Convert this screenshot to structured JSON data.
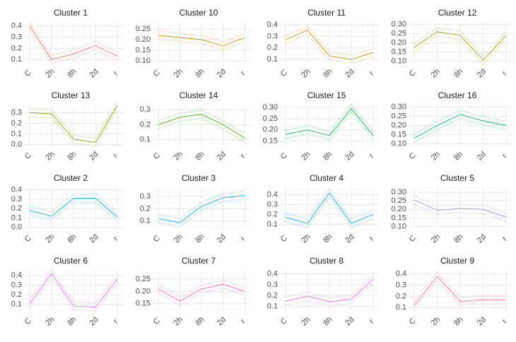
{
  "chart_data": [
    {
      "type": "line",
      "title": "Cluster 1",
      "x": [
        "C",
        "2h",
        "8h",
        "2d",
        "r"
      ],
      "values": [
        0.4,
        0.1,
        0.15,
        0.225,
        0.13
      ],
      "yticks": [
        0.1,
        0.2,
        0.3,
        0.4
      ],
      "ylim": [
        0.07,
        0.43
      ],
      "color": "#F8766D"
    },
    {
      "type": "line",
      "title": "Cluster 10",
      "x": [
        "C",
        "2h",
        "8h",
        "2d",
        "r"
      ],
      "values": [
        0.22,
        0.21,
        0.2,
        0.17,
        0.21
      ],
      "yticks": [
        0.1,
        0.15,
        0.2,
        0.25
      ],
      "ylim": [
        0.09,
        0.28
      ],
      "color": "#D89000"
    },
    {
      "type": "line",
      "title": "Cluster 11",
      "x": [
        "C",
        "2h",
        "8h",
        "2d",
        "r"
      ],
      "values": [
        0.27,
        0.355,
        0.13,
        0.1,
        0.16
      ],
      "yticks": [
        0.1,
        0.2,
        0.3,
        0.4
      ],
      "ylim": [
        0.07,
        0.42
      ],
      "color": "#C09B00"
    },
    {
      "type": "line",
      "title": "Cluster 12",
      "x": [
        "C",
        "2h",
        "8h",
        "2d",
        "r"
      ],
      "values": [
        0.175,
        0.26,
        0.24,
        0.105,
        0.24
      ],
      "yticks": [
        0.1,
        0.15,
        0.2,
        0.25,
        0.3
      ],
      "ylim": [
        0.09,
        0.31
      ],
      "color": "#A3A500"
    },
    {
      "type": "line",
      "title": "Cluster 13",
      "x": [
        "C",
        "2h",
        "8h",
        "2d",
        "r"
      ],
      "values": [
        0.3,
        0.29,
        0.05,
        0.02,
        0.37
      ],
      "yticks": [
        0.0,
        0.1,
        0.2,
        0.3
      ],
      "ylim": [
        -0.01,
        0.37
      ],
      "color": "#7CAE00"
    },
    {
      "type": "line",
      "title": "Cluster 14",
      "x": [
        "C",
        "2h",
        "8h",
        "2d",
        "r"
      ],
      "values": [
        0.2,
        0.25,
        0.27,
        0.2,
        0.11
      ],
      "yticks": [
        0.1,
        0.2,
        0.3
      ],
      "ylim": [
        0.06,
        0.33
      ],
      "color": "#39B600"
    },
    {
      "type": "line",
      "title": "Cluster 15",
      "x": [
        "C",
        "2h",
        "8h",
        "2d",
        "r"
      ],
      "values": [
        0.18,
        0.2,
        0.175,
        0.295,
        0.175
      ],
      "yticks": [
        0.15,
        0.2,
        0.25,
        0.3
      ],
      "ylim": [
        0.13,
        0.31
      ],
      "color": "#00BB4E"
    },
    {
      "type": "line",
      "title": "Cluster 16",
      "x": [
        "C",
        "2h",
        "8h",
        "2d",
        "r"
      ],
      "values": [
        0.13,
        0.2,
        0.26,
        0.225,
        0.2
      ],
      "yticks": [
        0.1,
        0.15,
        0.2,
        0.25,
        0.3
      ],
      "ylim": [
        0.09,
        0.31
      ],
      "color": "#00BF7D"
    },
    {
      "type": "line",
      "title": "Cluster 2",
      "x": [
        "C",
        "2h",
        "8h",
        "2d",
        "r"
      ],
      "values": [
        0.18,
        0.12,
        0.31,
        0.31,
        0.11
      ],
      "yticks": [
        0.0,
        0.1,
        0.2,
        0.3,
        0.4
      ],
      "ylim": [
        -0.01,
        0.42
      ],
      "color": "#00BCD8"
    },
    {
      "type": "line",
      "title": "Cluster 3",
      "x": [
        "C",
        "2h",
        "8h",
        "2d",
        "r"
      ],
      "values": [
        0.12,
        0.085,
        0.22,
        0.29,
        0.31
      ],
      "yticks": [
        0.1,
        0.2,
        0.3
      ],
      "ylim": [
        0.04,
        0.37
      ],
      "color": "#00B0F6"
    },
    {
      "type": "line",
      "title": "Cluster 4",
      "x": [
        "C",
        "2h",
        "8h",
        "2d",
        "r"
      ],
      "values": [
        0.17,
        0.11,
        0.42,
        0.11,
        0.2
      ],
      "yticks": [
        0.1,
        0.2,
        0.3,
        0.4
      ],
      "ylim": [
        0.06,
        0.47
      ],
      "color": "#00A5FF"
    },
    {
      "type": "line",
      "title": "Cluster 5",
      "x": [
        "C",
        "2h",
        "8h",
        "2d",
        "r"
      ],
      "values": [
        0.255,
        0.195,
        0.205,
        0.2,
        0.155
      ],
      "yticks": [
        0.1,
        0.15,
        0.2,
        0.25,
        0.3
      ],
      "ylim": [
        0.09,
        0.325
      ],
      "color": "#9590FF"
    },
    {
      "type": "line",
      "title": "Cluster 6",
      "x": [
        "C",
        "2h",
        "8h",
        "2d",
        "r"
      ],
      "values": [
        0.105,
        0.42,
        0.08,
        0.07,
        0.36
      ],
      "yticks": [
        0.1,
        0.2,
        0.3,
        0.4
      ],
      "ylim": [
        0.03,
        0.45
      ],
      "color": "#DB72FB"
    },
    {
      "type": "line",
      "title": "Cluster 7",
      "x": [
        "C",
        "2h",
        "8h",
        "2d",
        "r"
      ],
      "values": [
        0.21,
        0.16,
        0.21,
        0.23,
        0.2
      ],
      "yticks": [
        0.15,
        0.2,
        0.25
      ],
      "ylim": [
        0.12,
        0.285
      ],
      "color": "#FF61C3"
    },
    {
      "type": "line",
      "title": "Cluster 8",
      "x": [
        "C",
        "2h",
        "8h",
        "2d",
        "r"
      ],
      "values": [
        0.15,
        0.195,
        0.145,
        0.17,
        0.35
      ],
      "yticks": [
        0.1,
        0.2,
        0.3,
        0.4
      ],
      "ylim": [
        0.06,
        0.43
      ],
      "color": "#F066EA"
    },
    {
      "type": "line",
      "title": "Cluster 9",
      "x": [
        "C",
        "2h",
        "8h",
        "2d",
        "r"
      ],
      "values": [
        0.12,
        0.38,
        0.155,
        0.17,
        0.17
      ],
      "yticks": [
        0.1,
        0.2,
        0.3,
        0.4
      ],
      "ylim": [
        0.07,
        0.43
      ],
      "color": "#FF6C91"
    }
  ]
}
